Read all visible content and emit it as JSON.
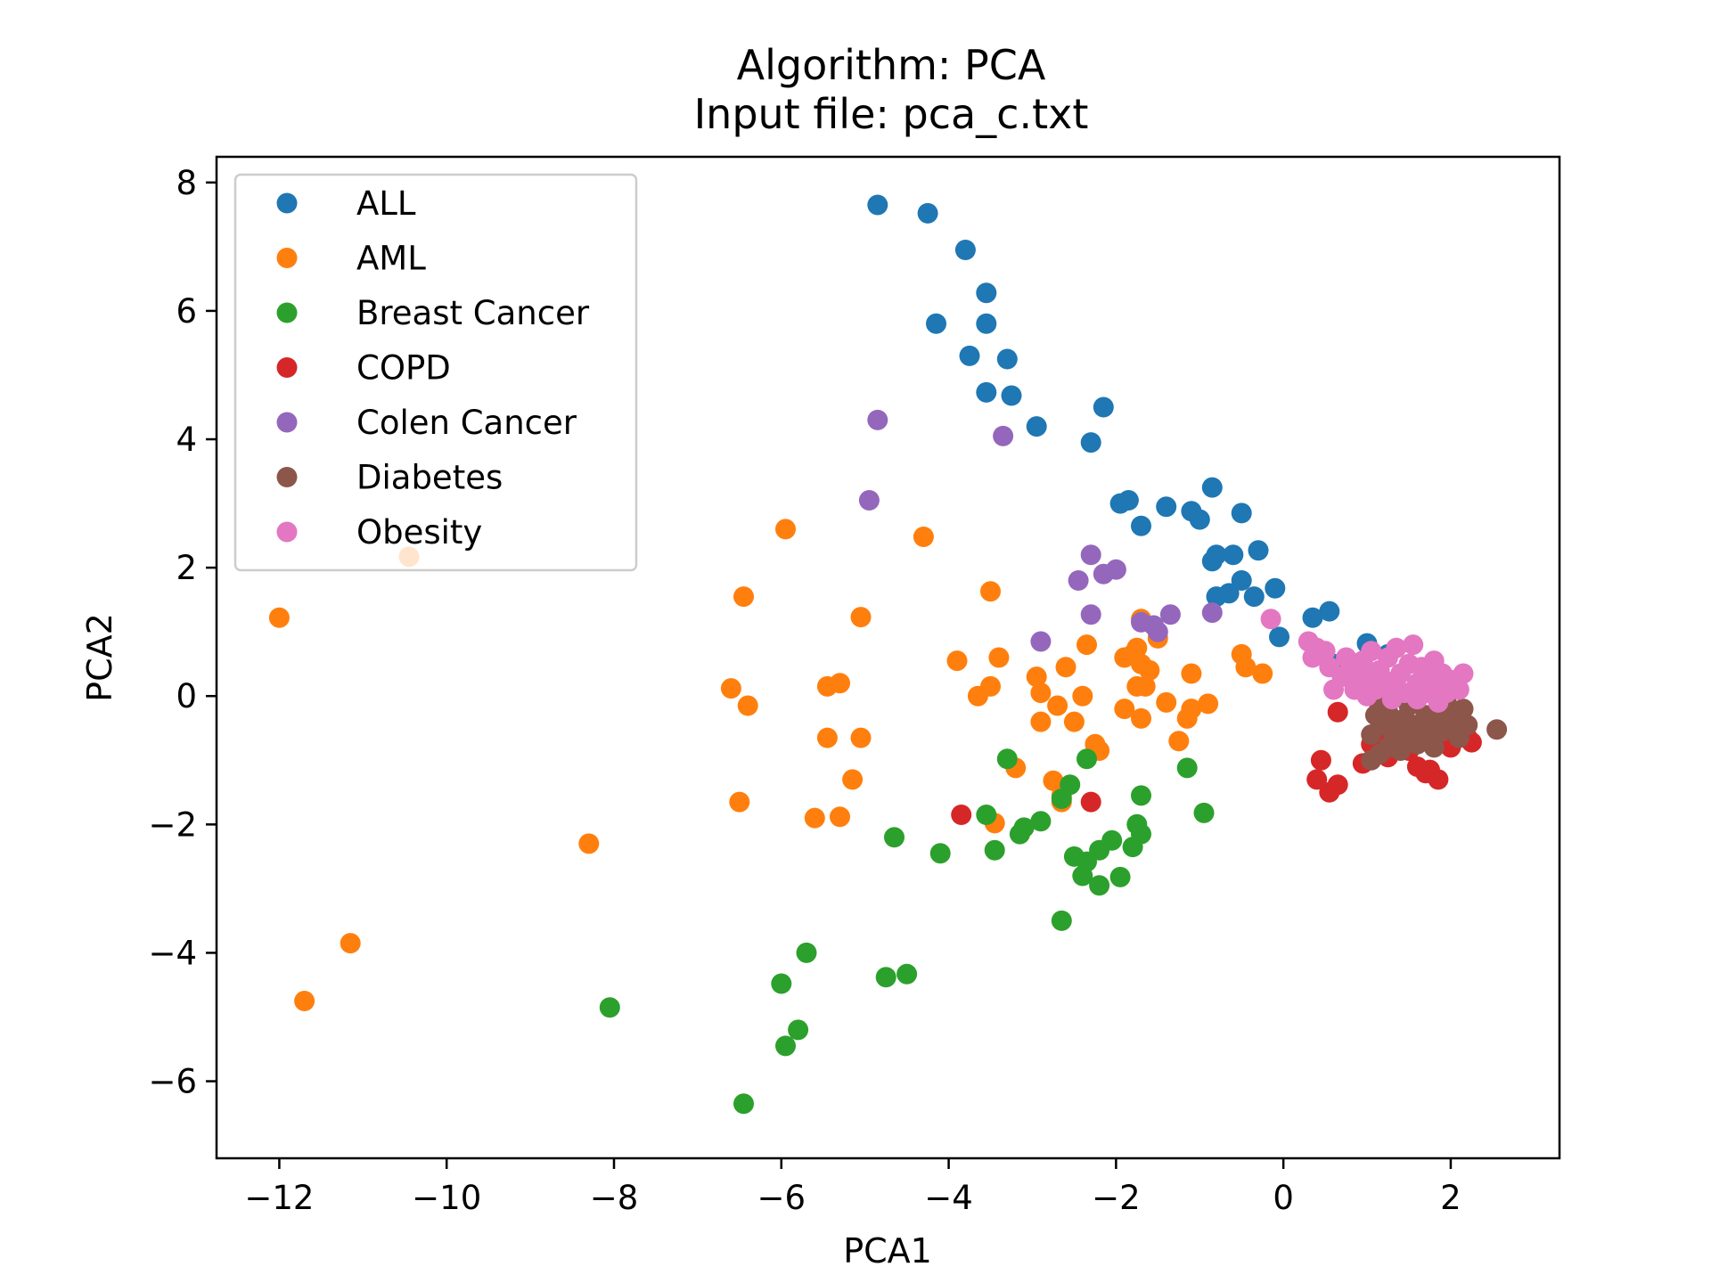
{
  "chart_data": {
    "type": "scatter",
    "title": "Algorithm: PCA",
    "subtitle": "Input file: pca_c.txt",
    "xlabel": "PCA1",
    "ylabel": "PCA2",
    "xlim": [
      -12.75,
      3.3
    ],
    "ylim": [
      -7.2,
      8.4
    ],
    "xticks": [
      -12,
      -10,
      -8,
      -6,
      -4,
      -2,
      0,
      2
    ],
    "xtick_labels": [
      "−12",
      "−10",
      "−8",
      "−6",
      "−4",
      "−2",
      "0",
      "2"
    ],
    "yticks": [
      -6,
      -4,
      -2,
      0,
      2,
      4,
      6,
      8
    ],
    "ytick_labels": [
      "−6",
      "−4",
      "−2",
      "0",
      "2",
      "4",
      "6",
      "8"
    ],
    "grid": false,
    "legend_position": "top-left",
    "series": [
      {
        "name": "ALL",
        "color": "#1f77b4",
        "points": [
          [
            -4.85,
            7.65
          ],
          [
            -4.25,
            7.52
          ],
          [
            -3.8,
            6.95
          ],
          [
            -3.55,
            6.28
          ],
          [
            -4.15,
            5.8
          ],
          [
            -3.55,
            5.8
          ],
          [
            -3.75,
            5.3
          ],
          [
            -3.3,
            5.25
          ],
          [
            -3.55,
            4.73
          ],
          [
            -3.25,
            4.68
          ],
          [
            -2.95,
            4.2
          ],
          [
            -2.15,
            4.5
          ],
          [
            -2.3,
            3.95
          ],
          [
            -1.95,
            3.0
          ],
          [
            -1.85,
            3.05
          ],
          [
            -1.7,
            2.65
          ],
          [
            -1.4,
            2.95
          ],
          [
            -1.1,
            2.88
          ],
          [
            -1.0,
            2.75
          ],
          [
            -0.85,
            3.25
          ],
          [
            -0.5,
            2.85
          ],
          [
            -0.85,
            2.1
          ],
          [
            -0.8,
            2.2
          ],
          [
            -0.6,
            2.2
          ],
          [
            -0.3,
            2.27
          ],
          [
            -0.8,
            1.55
          ],
          [
            -0.65,
            1.6
          ],
          [
            -0.5,
            1.8
          ],
          [
            -0.35,
            1.55
          ],
          [
            -0.1,
            1.68
          ],
          [
            -0.05,
            0.92
          ],
          [
            0.35,
            1.22
          ],
          [
            0.55,
            1.32
          ],
          [
            0.6,
            0.5
          ],
          [
            1.0,
            0.82
          ],
          [
            1.25,
            0.65
          ]
        ]
      },
      {
        "name": "AML",
        "color": "#ff7f0e",
        "points": [
          [
            -12.0,
            1.22
          ],
          [
            -10.45,
            2.17
          ],
          [
            -11.7,
            -4.75
          ],
          [
            -11.15,
            -3.85
          ],
          [
            -8.3,
            -2.3
          ],
          [
            -5.95,
            2.6
          ],
          [
            -6.45,
            1.55
          ],
          [
            -4.3,
            2.48
          ],
          [
            -3.5,
            1.63
          ],
          [
            -5.05,
            1.23
          ],
          [
            -6.6,
            0.12
          ],
          [
            -6.4,
            -0.15
          ],
          [
            -5.45,
            0.15
          ],
          [
            -5.3,
            0.2
          ],
          [
            -3.9,
            0.55
          ],
          [
            -3.4,
            0.6
          ],
          [
            -3.65,
            0.0
          ],
          [
            -3.5,
            0.15
          ],
          [
            -5.45,
            -0.65
          ],
          [
            -5.05,
            -0.65
          ],
          [
            -5.15,
            -1.3
          ],
          [
            -6.5,
            -1.65
          ],
          [
            -5.6,
            -1.9
          ],
          [
            -5.3,
            -1.88
          ],
          [
            -3.45,
            -1.98
          ],
          [
            -3.2,
            -1.12
          ],
          [
            -2.95,
            0.3
          ],
          [
            -2.9,
            0.05
          ],
          [
            -2.9,
            -0.4
          ],
          [
            -2.7,
            -0.15
          ],
          [
            -2.6,
            0.45
          ],
          [
            -2.5,
            -0.4
          ],
          [
            -2.35,
            0.8
          ],
          [
            -2.4,
            0.0
          ],
          [
            -2.2,
            -0.85
          ],
          [
            -2.25,
            -0.75
          ],
          [
            -2.65,
            -1.65
          ],
          [
            -2.65,
            -1.55
          ],
          [
            -2.75,
            -1.32
          ],
          [
            -1.9,
            0.6
          ],
          [
            -1.9,
            -0.2
          ],
          [
            -1.8,
            0.65
          ],
          [
            -1.75,
            0.75
          ],
          [
            -1.7,
            0.5
          ],
          [
            -1.75,
            0.15
          ],
          [
            -1.65,
            0.15
          ],
          [
            -1.6,
            0.4
          ],
          [
            -1.7,
            -0.35
          ],
          [
            -1.7,
            1.2
          ],
          [
            -1.5,
            0.9
          ],
          [
            -1.4,
            -0.1
          ],
          [
            -1.25,
            -0.7
          ],
          [
            -1.15,
            -0.35
          ],
          [
            -1.1,
            -0.2
          ],
          [
            -1.1,
            0.35
          ],
          [
            -0.9,
            -0.12
          ],
          [
            -0.5,
            0.65
          ],
          [
            -0.45,
            0.45
          ],
          [
            -0.25,
            0.35
          ]
        ]
      },
      {
        "name": "Breast Cancer",
        "color": "#2ca02c",
        "points": [
          [
            -8.05,
            -4.85
          ],
          [
            -6.45,
            -6.35
          ],
          [
            -6.0,
            -4.48
          ],
          [
            -5.95,
            -5.45
          ],
          [
            -5.8,
            -5.2
          ],
          [
            -5.7,
            -4.0
          ],
          [
            -4.75,
            -4.38
          ],
          [
            -4.5,
            -4.33
          ],
          [
            -4.65,
            -2.2
          ],
          [
            -4.1,
            -2.45
          ],
          [
            -3.55,
            -1.85
          ],
          [
            -3.45,
            -2.4
          ],
          [
            -3.3,
            -0.98
          ],
          [
            -3.15,
            -2.15
          ],
          [
            -3.1,
            -2.05
          ],
          [
            -2.9,
            -1.95
          ],
          [
            -2.65,
            -1.6
          ],
          [
            -2.55,
            -1.38
          ],
          [
            -2.35,
            -0.98
          ],
          [
            -2.65,
            -3.5
          ],
          [
            -2.5,
            -2.5
          ],
          [
            -2.4,
            -2.8
          ],
          [
            -2.35,
            -2.58
          ],
          [
            -2.2,
            -2.95
          ],
          [
            -2.2,
            -2.4
          ],
          [
            -2.05,
            -2.25
          ],
          [
            -1.95,
            -2.82
          ],
          [
            -1.8,
            -2.35
          ],
          [
            -1.75,
            -2.0
          ],
          [
            -1.7,
            -2.15
          ],
          [
            -1.7,
            -1.55
          ],
          [
            -1.15,
            -1.12
          ],
          [
            -0.95,
            -1.82
          ]
        ]
      },
      {
        "name": "COPD",
        "color": "#d62728",
        "points": [
          [
            -3.85,
            -1.85
          ],
          [
            -2.3,
            -1.65
          ],
          [
            0.45,
            -1.0
          ],
          [
            0.4,
            -1.3
          ],
          [
            0.55,
            -1.5
          ],
          [
            0.65,
            -1.38
          ],
          [
            0.65,
            -0.25
          ],
          [
            0.95,
            -1.05
          ],
          [
            1.05,
            -0.75
          ],
          [
            1.1,
            -0.9
          ],
          [
            1.25,
            -0.95
          ],
          [
            1.35,
            -0.7
          ],
          [
            1.5,
            -0.85
          ],
          [
            1.6,
            -1.1
          ],
          [
            1.7,
            -1.2
          ],
          [
            1.75,
            -1.15
          ],
          [
            1.85,
            -1.3
          ],
          [
            2.0,
            -0.8
          ],
          [
            2.2,
            -0.65
          ],
          [
            2.25,
            -0.72
          ],
          [
            1.8,
            -0.55
          ],
          [
            1.4,
            -0.45
          ],
          [
            1.2,
            -0.6
          ]
        ]
      },
      {
        "name": "Colen Cancer",
        "color": "#9467bd",
        "points": [
          [
            -4.85,
            4.3
          ],
          [
            -3.35,
            4.05
          ],
          [
            -4.95,
            3.05
          ],
          [
            -2.3,
            2.2
          ],
          [
            -2.45,
            1.8
          ],
          [
            -2.15,
            1.9
          ],
          [
            -2.0,
            1.97
          ],
          [
            -2.3,
            1.27
          ],
          [
            -2.9,
            0.85
          ],
          [
            -1.7,
            1.15
          ],
          [
            -1.55,
            1.1
          ],
          [
            -1.5,
            1.0
          ],
          [
            -1.35,
            1.27
          ],
          [
            -0.85,
            1.3
          ]
        ]
      },
      {
        "name": "Diabetes",
        "color": "#8c564b",
        "points": [
          [
            2.55,
            -0.52
          ],
          [
            1.05,
            -1.0
          ],
          [
            1.15,
            -0.9
          ],
          [
            1.25,
            -0.8
          ],
          [
            1.35,
            -0.7
          ],
          [
            1.5,
            -0.6
          ],
          [
            1.6,
            -0.75
          ],
          [
            1.75,
            -0.65
          ],
          [
            1.9,
            -0.55
          ],
          [
            2.05,
            -0.5
          ],
          [
            2.2,
            -0.45
          ],
          [
            1.1,
            -0.3
          ],
          [
            1.2,
            -0.45
          ],
          [
            1.3,
            -0.55
          ],
          [
            1.45,
            -0.35
          ],
          [
            1.55,
            -0.45
          ],
          [
            1.7,
            -0.3
          ],
          [
            1.85,
            -0.4
          ],
          [
            2.0,
            -0.3
          ],
          [
            2.15,
            -0.2
          ],
          [
            1.05,
            -0.6
          ],
          [
            1.25,
            -0.25
          ],
          [
            1.4,
            -0.85
          ],
          [
            1.65,
            -0.55
          ],
          [
            1.8,
            -0.8
          ],
          [
            2.1,
            -0.65
          ],
          [
            1.15,
            -0.15
          ],
          [
            1.5,
            -0.15
          ],
          [
            1.95,
            -0.1
          ],
          [
            1.35,
            -0.45
          ]
        ]
      },
      {
        "name": "Obesity",
        "color": "#e377c2",
        "points": [
          [
            -0.15,
            1.2
          ],
          [
            0.3,
            0.85
          ],
          [
            0.4,
            0.75
          ],
          [
            0.35,
            0.6
          ],
          [
            0.5,
            0.7
          ],
          [
            0.55,
            0.45
          ],
          [
            0.6,
            0.1
          ],
          [
            0.7,
            0.3
          ],
          [
            0.75,
            0.6
          ],
          [
            0.8,
            0.45
          ],
          [
            0.85,
            0.1
          ],
          [
            0.9,
            0.25
          ],
          [
            0.95,
            0.55
          ],
          [
            1.0,
            0.35
          ],
          [
            1.05,
            0.7
          ],
          [
            1.1,
            0.1
          ],
          [
            1.15,
            0.4
          ],
          [
            1.2,
            0.25
          ],
          [
            1.25,
            0.6
          ],
          [
            1.3,
            0.15
          ],
          [
            1.35,
            0.75
          ],
          [
            1.4,
            0.35
          ],
          [
            1.45,
            0.05
          ],
          [
            1.5,
            0.5
          ],
          [
            1.55,
            0.8
          ],
          [
            1.6,
            0.2
          ],
          [
            1.65,
            0.45
          ],
          [
            1.7,
            0.05
          ],
          [
            1.75,
            0.3
          ],
          [
            1.8,
            0.55
          ],
          [
            1.85,
            0.15
          ],
          [
            1.9,
            0.35
          ],
          [
            1.95,
            0.05
          ],
          [
            2.0,
            0.25
          ],
          [
            2.1,
            0.1
          ],
          [
            2.15,
            0.35
          ],
          [
            1.0,
            0.0
          ],
          [
            1.3,
            -0.05
          ],
          [
            1.6,
            -0.05
          ],
          [
            1.85,
            -0.1
          ]
        ]
      }
    ]
  }
}
